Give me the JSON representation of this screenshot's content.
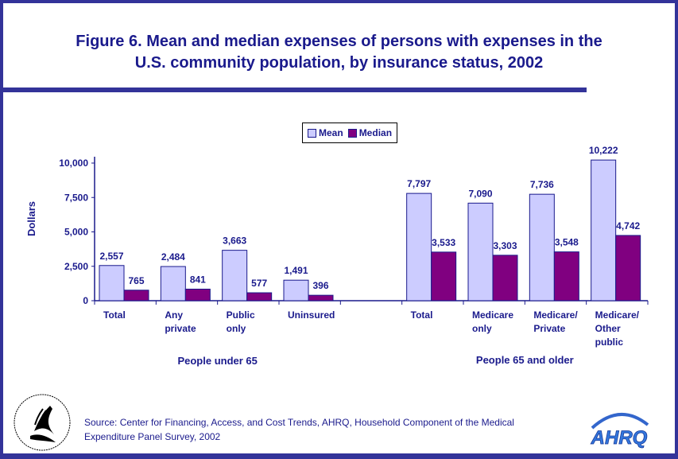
{
  "title": {
    "line1": "Figure 6. Mean and median expenses of persons with expenses in the",
    "line2": "U.S. community population, by insurance status, 2002"
  },
  "legend": {
    "mean": "Mean",
    "median": "Median"
  },
  "colors": {
    "frame": "#333399",
    "text": "#1a1a8c",
    "mean": "#ccccff",
    "median": "#800080"
  },
  "chart_data": {
    "type": "bar",
    "title": "Figure 6. Mean and median expenses of persons with expenses in the U.S. community population, by insurance status, 2002",
    "ylabel": "Dollars",
    "xlabel": "",
    "ylim": [
      0,
      10000
    ],
    "yticks": [
      0,
      2500,
      5000,
      7500,
      10000
    ],
    "ytick_labels": [
      "0",
      "2,500",
      "5,000",
      "7,500",
      "10,000"
    ],
    "grid": false,
    "legend_position": "top-center",
    "categories": [
      {
        "label": [
          "Total"
        ],
        "group": "People under 65"
      },
      {
        "label": [
          "Any",
          "private"
        ],
        "group": "People under 65"
      },
      {
        "label": [
          "Public",
          "only"
        ],
        "group": "People under 65"
      },
      {
        "label": [
          "Uninsured"
        ],
        "group": "People under 65"
      },
      {
        "label": [],
        "group": ""
      },
      {
        "label": [
          "Total"
        ],
        "group": "People 65 and older"
      },
      {
        "label": [
          "Medicare",
          "only"
        ],
        "group": "People 65 and older"
      },
      {
        "label": [
          "Medicare/",
          "Private"
        ],
        "group": "People 65 and older"
      },
      {
        "label": [
          "Medicare/",
          "Other",
          "public"
        ],
        "group": "People 65 and older"
      }
    ],
    "series": [
      {
        "name": "Mean",
        "values": [
          2557,
          2484,
          3663,
          1491,
          null,
          7797,
          7090,
          7736,
          10222
        ],
        "labels": [
          "2,557",
          "2,484",
          "3,663",
          "1,491",
          null,
          "7,797",
          "7,090",
          "7,736",
          "10,222"
        ]
      },
      {
        "name": "Median",
        "values": [
          765,
          841,
          577,
          396,
          null,
          3533,
          3303,
          3548,
          4742
        ],
        "labels": [
          "765",
          "841",
          "577",
          "396",
          null,
          "3,533",
          "3,303",
          "3,548",
          "4,742"
        ]
      }
    ],
    "groups": [
      "People under 65",
      "People 65 and older"
    ]
  },
  "source": {
    "line1": "Source: Center for Financing, Access, and Cost Trends, AHRQ, Household Component of the Medical",
    "line2": "Expenditure Panel Survey, 2002"
  },
  "logos": {
    "left": "hhs-seal",
    "right": "AHRQ"
  }
}
